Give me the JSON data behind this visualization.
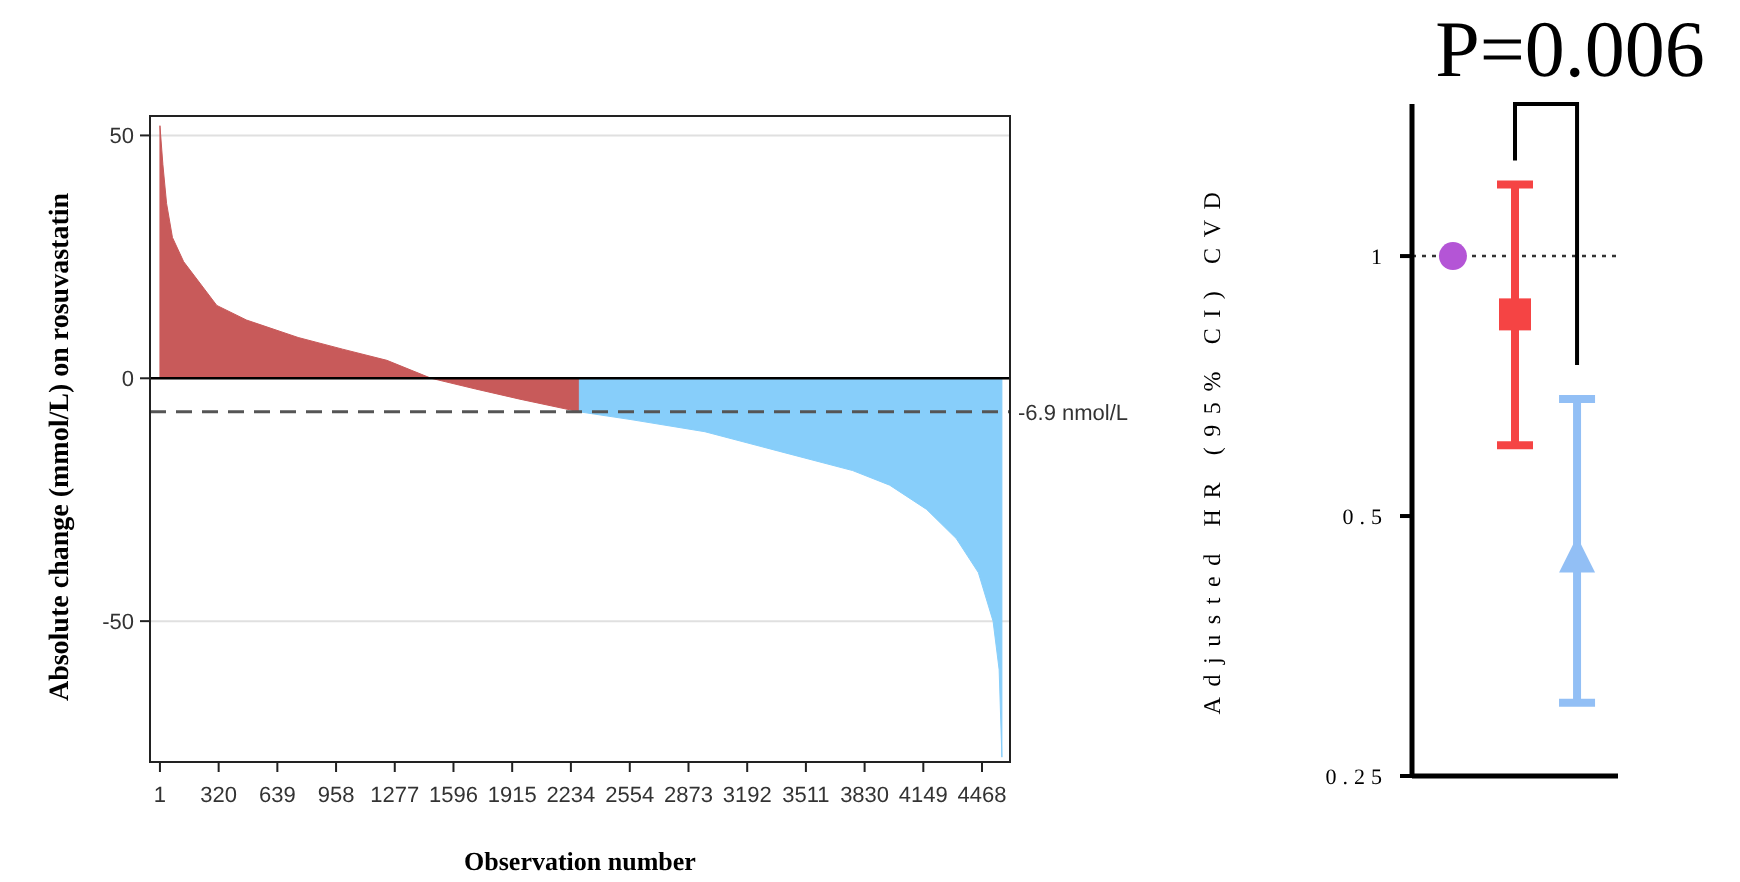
{
  "chart_data": [
    {
      "type": "area",
      "xlabel": "Observation number",
      "ylabel": "Absolute change (mmol/L) on rosuvastatin",
      "xlim": [
        -53,
        4620
      ],
      "ylim": [
        -79,
        54
      ],
      "xticks": [
        1,
        320,
        639,
        958,
        1277,
        1596,
        1915,
        2234,
        2554,
        2873,
        3192,
        3511,
        3830,
        4149,
        4468
      ],
      "yticks": [
        50,
        0,
        -50
      ],
      "grid": "y",
      "series": [
        {
          "color": "#c85a5a",
          "x": [
            1,
            17,
            37,
            69,
            130,
            190,
            310,
            471,
            752,
            993,
            1234,
            1475,
            1716,
            1957,
            2279
          ],
          "values": [
            52,
            44,
            36,
            29,
            24,
            21,
            15,
            12,
            8.4,
            6,
            3.7,
            0,
            -2.2,
            -4.3,
            -6.9
          ]
        },
        {
          "color": "#87cefa",
          "x": [
            2280,
            2560,
            2962,
            3363,
            3765,
            3966,
            4167,
            4328,
            4448,
            4528,
            4561,
            4576
          ],
          "values": [
            -6.9,
            -8.5,
            -11,
            -15,
            -19,
            -22,
            -27,
            -33,
            -40,
            -50,
            -60,
            -78
          ]
        }
      ],
      "ref_lines": [
        {
          "axis": "y",
          "value": -6.9,
          "label": "-6.9 nmol/L",
          "line_style": "dashed",
          "color": "#555555"
        }
      ]
    },
    {
      "type": "scatter",
      "ylabel": "Adjusted HR (95% CI) CVD",
      "categories": [
        null,
        null,
        null
      ],
      "ylim": [
        0.25,
        1.5
      ],
      "yticks": [
        0.25,
        0.5,
        1
      ],
      "log": true,
      "tick_labels": "y",
      "series": [
        {
          "color": "#b455d6",
          "marker": "circle",
          "values": [
            1,
            null,
            null
          ]
        },
        {
          "color": "#f54444",
          "marker": "square",
          "values": [
            null,
            0.856,
            null
          ],
          "errors": [
            null,
            [
              0.604,
              1.21
            ],
            null
          ]
        },
        {
          "color": "#92bff5",
          "marker": "triangle",
          "values": [
            null,
            null,
            0.449
          ],
          "errors": [
            null,
            null,
            [
              0.304,
              0.683
            ]
          ]
        }
      ],
      "ref_lines": [
        {
          "axis": "y",
          "value": 1,
          "line_style": "dotted",
          "color": "#333333"
        }
      ],
      "annotations": [
        "P=0.006"
      ]
    }
  ]
}
